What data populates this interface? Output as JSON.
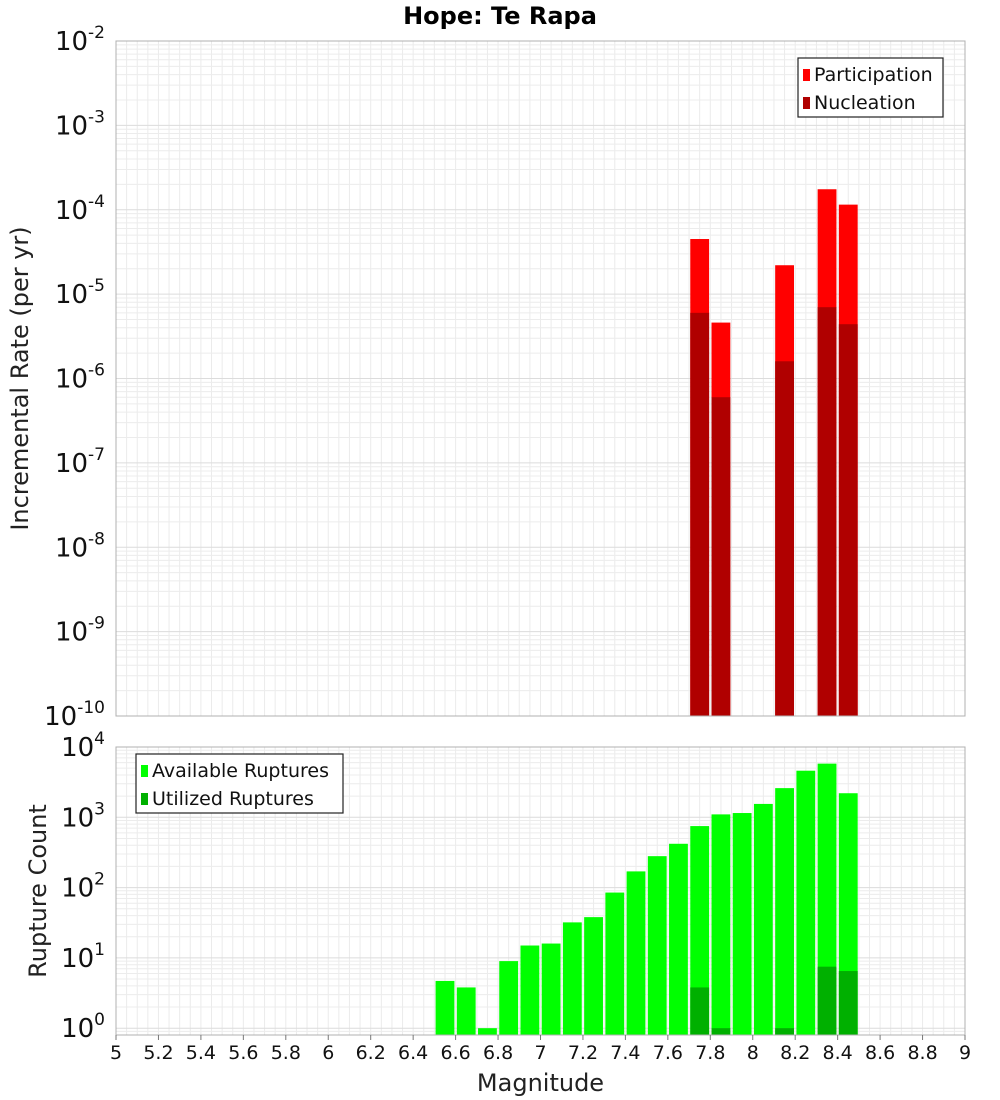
{
  "chart_data": [
    {
      "type": "bar",
      "title": "Hope: Te Rapa",
      "xlabel": "",
      "ylabel": "Incremental Rate (per yr)",
      "yscale": "log",
      "ylim": [
        1e-10,
        0.01
      ],
      "xlim": [
        5,
        9
      ],
      "grid": true,
      "legend_position": "top-right",
      "yticks": [
        {
          "base": "10",
          "exp": "-10"
        },
        {
          "base": "10",
          "exp": "-9"
        },
        {
          "base": "10",
          "exp": "-8"
        },
        {
          "base": "10",
          "exp": "-7"
        },
        {
          "base": "10",
          "exp": "-6"
        },
        {
          "base": "10",
          "exp": "-5"
        },
        {
          "base": "10",
          "exp": "-4"
        },
        {
          "base": "10",
          "exp": "-3"
        },
        {
          "base": "10",
          "exp": "-2"
        }
      ],
      "bar_width": 0.1,
      "series": [
        {
          "name": "Participation",
          "color": "#ff0000",
          "x": [
            7.75,
            7.85,
            8.15,
            8.35,
            8.45
          ],
          "values": [
            4.5e-05,
            4.6e-06,
            2.2e-05,
            0.000175,
            0.000115
          ]
        },
        {
          "name": "Nucleation",
          "color": "#b00000",
          "x": [
            7.75,
            7.85,
            8.15,
            8.35,
            8.45
          ],
          "values": [
            6e-06,
            6e-07,
            1.6e-06,
            7e-06,
            4.4e-06
          ]
        }
      ]
    },
    {
      "type": "bar",
      "xlabel": "Magnitude",
      "ylabel": "Rupture Count",
      "yscale": "log",
      "ylim": [
        0.8,
        10000
      ],
      "xlim": [
        5,
        9
      ],
      "grid": true,
      "legend_position": "top-left",
      "yticks": [
        {
          "base": "10",
          "exp": "0",
          "value": 1
        },
        {
          "base": "10",
          "exp": "1",
          "value": 10
        },
        {
          "base": "10",
          "exp": "2",
          "value": 100
        },
        {
          "base": "10",
          "exp": "3",
          "value": 1000
        },
        {
          "base": "10",
          "exp": "4",
          "value": 10000
        }
      ],
      "xticks": [
        "5",
        "5.2",
        "5.4",
        "5.6",
        "5.8",
        "6",
        "6.2",
        "6.4",
        "6.6",
        "6.8",
        "7",
        "7.2",
        "7.4",
        "7.6",
        "7.8",
        "8",
        "8.2",
        "8.4",
        "8.6",
        "8.8",
        "9"
      ],
      "bar_width": 0.1,
      "series": [
        {
          "name": "Available Ruptures",
          "color": "#00ff00",
          "x": [
            6.55,
            6.65,
            6.75,
            6.85,
            6.95,
            7.05,
            7.15,
            7.25,
            7.35,
            7.45,
            7.55,
            7.65,
            7.75,
            7.85,
            7.95,
            8.05,
            8.15,
            8.25,
            8.35,
            8.45
          ],
          "values": [
            4.7,
            3.8,
            1,
            9,
            15,
            16,
            32,
            38,
            85,
            170,
            280,
            420,
            750,
            1100,
            1150,
            1550,
            2600,
            4600,
            5800,
            2200
          ]
        },
        {
          "name": "Utilized Ruptures",
          "color": "#00b000",
          "x": [
            7.75,
            7.85,
            8.15,
            8.35,
            8.45
          ],
          "values": [
            3.8,
            1,
            1,
            7.5,
            6.5
          ]
        }
      ]
    }
  ]
}
